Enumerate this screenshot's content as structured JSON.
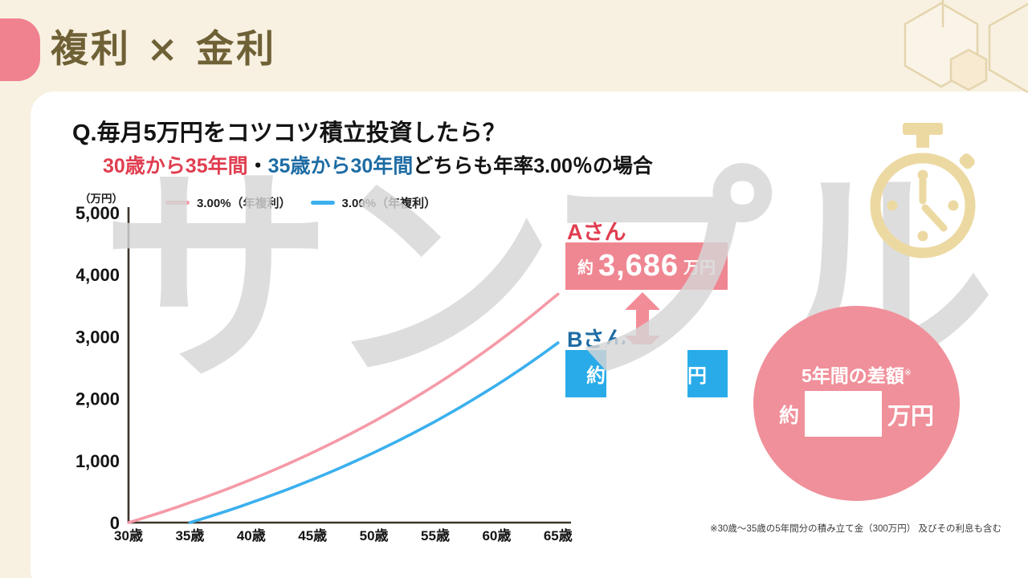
{
  "colors": {
    "cream": "#f8f1e1",
    "pink-tab": "#f0818f",
    "pink": "#ef8792",
    "pink-circle": "#f0909a",
    "pink-arrow": "#f28d98",
    "blue": "#29abe9",
    "red-label": "#e03e50",
    "blue-label": "#1e6ca4",
    "olive": "#6f6136",
    "gold": "#ecd9a2",
    "hex-stroke": "#e4d5ad",
    "watermark": "rgba(214,214,214,0.82)"
  },
  "header": {
    "title": "複利 × 金利"
  },
  "card": {
    "question": "Q.毎月5万円をコツコツ積立投資したら？",
    "subtitle": {
      "part1": "30歳から35年間",
      "sep": "・",
      "part2": "35歳から30年間",
      "part3": "どちらも年率3.00％の場合"
    },
    "watermark": "サンプル",
    "person_a": {
      "label": "Aさん",
      "prefix": "約",
      "value": "3,686",
      "suffix": "万円"
    },
    "person_b": {
      "label": "Bさん",
      "prefix": "約",
      "value": "",
      "value_masked": true,
      "suffix": "万円"
    },
    "diff_circle": {
      "title": "5年間の差額",
      "note_mark": "※",
      "prefix": "約",
      "value": "",
      "value_masked": true,
      "suffix": "万円"
    },
    "footnote": "※30歳～35歳の5年間分の積み立て金（300万円） 及びその利息も含む"
  },
  "icons": {
    "stopwatch_icon": "⏱",
    "hexagon_icon": "⬡",
    "double_arrow_icon": "↕"
  },
  "chart_data": {
    "type": "line",
    "unit_label": "（万円）",
    "x_unit": "歳",
    "y_unit": "万円",
    "ylim": [
      0,
      5000
    ],
    "xlim": [
      30,
      65
    ],
    "grid": false,
    "legend_position": "top-left",
    "yticks": [
      0,
      1000,
      2000,
      3000,
      4000,
      5000
    ],
    "ytick_labels": [
      "0",
      "1,000",
      "2,000",
      "3,000",
      "4,000",
      "5,000"
    ],
    "xticks": [
      30,
      35,
      40,
      45,
      50,
      55,
      60,
      65
    ],
    "xtick_labels": [
      "30歳",
      "35歳",
      "40歳",
      "45歳",
      "50歳",
      "55歳",
      "60歳",
      "65歳"
    ],
    "legend": [
      {
        "label": "3.00%（年複利）",
        "color": "#f59aa7"
      },
      {
        "label": "3.00%（年複利）",
        "color": "#3bb0ee"
      }
    ],
    "series": [
      {
        "name": "Aさん 3.00%（年複利） 30歳から35年間",
        "color": "#f59aa7",
        "start_age": 30,
        "end_value_label": "約3,686万円",
        "values": [
          0,
          61,
          123,
          187,
          253,
          322,
          392,
          465,
          539,
          616,
          695,
          777,
          861,
          948,
          1038,
          1130,
          1225,
          1323,
          1423,
          1527,
          1634,
          1745,
          1858,
          1975,
          2096,
          2220,
          2349,
          2481,
          2617,
          2757,
          2902,
          3051,
          3204,
          3362,
          3525,
          3686
        ]
      },
      {
        "name": "Bさん 3.00%（年複利） 35歳から30年間",
        "color": "#3bb0ee",
        "start_age": 35,
        "end_value_label": "約（非表示）万円",
        "values": [
          0,
          61,
          123,
          187,
          253,
          322,
          392,
          465,
          539,
          616,
          695,
          777,
          861,
          948,
          1038,
          1130,
          1225,
          1323,
          1423,
          1527,
          1634,
          1745,
          1858,
          1975,
          2096,
          2220,
          2349,
          2481,
          2617,
          2757,
          2902
        ]
      }
    ]
  }
}
